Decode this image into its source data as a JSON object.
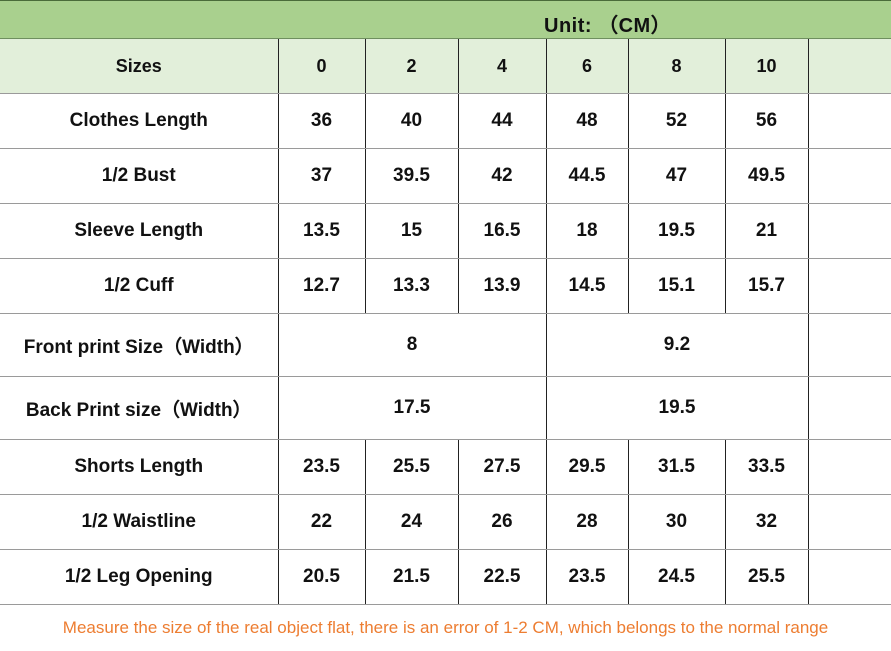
{
  "unit_label": "Unit:  （CM）",
  "header": {
    "label": "Sizes",
    "sizes": [
      "0",
      "2",
      "4",
      "6",
      "8",
      "10"
    ]
  },
  "rows": [
    {
      "label": "Clothes Length",
      "values": [
        "36",
        "40",
        "44",
        "48",
        "52",
        "56"
      ]
    },
    {
      "label": "1/2 Bust",
      "values": [
        "37",
        "39.5",
        "42",
        "44.5",
        "47",
        "49.5"
      ]
    },
    {
      "label": "Sleeve Length",
      "values": [
        "13.5",
        "15",
        "16.5",
        "18",
        "19.5",
        "21"
      ]
    },
    {
      "label": "1/2 Cuff",
      "values": [
        "12.7",
        "13.3",
        "13.9",
        "14.5",
        "15.1",
        "15.7"
      ]
    },
    {
      "label": "Front print Size（Width）",
      "merged": [
        "8",
        "9.2"
      ]
    },
    {
      "label": "Back Print size（Width）",
      "merged": [
        "17.5",
        "19.5"
      ]
    },
    {
      "label": "Shorts Length",
      "values": [
        "23.5",
        "25.5",
        "27.5",
        "29.5",
        "31.5",
        "33.5"
      ]
    },
    {
      "label": "1/2 Waistline",
      "values": [
        "22",
        "24",
        "26",
        "28",
        "30",
        "32"
      ]
    },
    {
      "label": "1/2 Leg Opening",
      "values": [
        "20.5",
        "21.5",
        "22.5",
        "23.5",
        "24.5",
        "25.5"
      ]
    }
  ],
  "note": "Measure the size of the real object flat, there is an error of 1-2 CM, which belongs to the normal range",
  "colors": {
    "unit_bar": "#a9d08e",
    "header_bg": "#e2efda",
    "note": "#ed7d31"
  }
}
